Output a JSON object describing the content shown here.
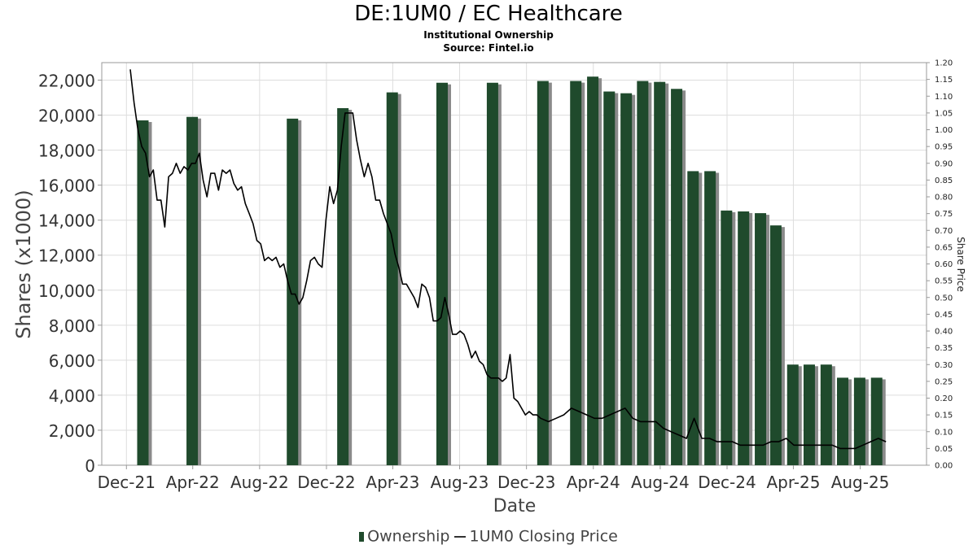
{
  "chart_data": {
    "type": "bar",
    "title": "DE:1UM0 / EC Healthcare",
    "subtitles": [
      "Institutional Ownership",
      "Source: Fintel.io"
    ],
    "xlabel": "Date",
    "ylabel": "Shares (x1000)",
    "y2label": "Share Price",
    "ylim": [
      0,
      23000
    ],
    "y2lim": [
      0,
      1.2
    ],
    "yticks": [
      0,
      2000,
      4000,
      6000,
      8000,
      10000,
      12000,
      14000,
      16000,
      18000,
      20000,
      22000
    ],
    "ytick_labels": [
      "0",
      "2,000",
      "4,000",
      "6,000",
      "8,000",
      "10,000",
      "12,000",
      "14,000",
      "16,000",
      "18,000",
      "20,000",
      "22,000"
    ],
    "y2ticks": [
      0,
      0.05,
      0.1,
      0.15,
      0.2,
      0.25,
      0.3,
      0.35,
      0.4,
      0.45,
      0.5,
      0.55,
      0.6,
      0.65,
      0.7,
      0.75,
      0.8,
      0.85,
      0.9,
      0.95,
      1.0,
      1.05,
      1.1,
      1.15,
      1.2
    ],
    "y2tick_labels": [
      "0.00",
      "0.05",
      "0.10",
      "0.15",
      "0.20",
      "0.25",
      "0.30",
      "0.35",
      "0.40",
      "0.45",
      "0.50",
      "0.55",
      "0.60",
      "0.65",
      "0.70",
      "0.75",
      "0.80",
      "0.85",
      "0.90",
      "0.95",
      "1.00",
      "1.05",
      "1.10",
      "1.15",
      "1.20"
    ],
    "xlim": [
      "2021-10-17",
      "2025-11-30"
    ],
    "xticks": [
      "2021-12-01",
      "2022-04-01",
      "2022-08-01",
      "2022-12-01",
      "2023-04-01",
      "2023-08-01",
      "2023-12-01",
      "2024-04-01",
      "2024-08-01",
      "2024-12-01",
      "2025-04-01",
      "2025-08-01"
    ],
    "xtick_labels": [
      "Dec-21",
      "Apr-22",
      "Aug-22",
      "Dec-22",
      "Apr-23",
      "Aug-23",
      "Dec-23",
      "Apr-24",
      "Aug-24",
      "Dec-24",
      "Apr-25",
      "Aug-25"
    ],
    "grid": true,
    "legend_position": "bottom-center",
    "series": [
      {
        "name": "Ownership",
        "type": "bar",
        "axis": "left",
        "color": "#1f4a2c",
        "x": [
          "2021-12-31",
          "2022-03-31",
          "2022-06-30",
          "2022-09-30",
          "2022-12-31",
          "2023-03-31",
          "2023-06-30",
          "2023-09-30",
          "2023-12-31",
          "2024-02-29",
          "2024-03-31",
          "2024-04-30",
          "2024-05-31",
          "2024-06-30",
          "2024-07-31",
          "2024-08-31",
          "2024-09-30",
          "2024-10-31",
          "2024-11-30",
          "2024-12-31",
          "2025-01-31",
          "2025-02-28",
          "2025-03-31",
          "2025-04-30",
          "2025-05-31",
          "2025-06-30",
          "2025-07-31",
          "2025-08-31",
          "2025-09-30"
        ],
        "values": [
          19700,
          19900,
          0,
          19800,
          20400,
          21300,
          21850,
          21850,
          21950,
          21950,
          22200,
          21350,
          21250,
          21950,
          21900,
          21500,
          16800,
          16800,
          14550,
          14500,
          14400,
          13700,
          5750,
          5750,
          5750,
          5000,
          5000,
          5000,
          0
        ]
      },
      {
        "name": "1UM0 Closing Price",
        "type": "line",
        "axis": "right",
        "color": "#000000",
        "x": [
          "2021-12-08",
          "2021-12-15",
          "2021-12-22",
          "2021-12-29",
          "2022-01-05",
          "2022-01-12",
          "2022-01-19",
          "2022-01-26",
          "2022-02-02",
          "2022-02-09",
          "2022-02-16",
          "2022-02-23",
          "2022-03-02",
          "2022-03-09",
          "2022-03-16",
          "2022-03-23",
          "2022-03-30",
          "2022-04-06",
          "2022-04-13",
          "2022-04-20",
          "2022-04-27",
          "2022-05-04",
          "2022-05-11",
          "2022-05-18",
          "2022-05-25",
          "2022-06-01",
          "2022-06-08",
          "2022-06-15",
          "2022-06-22",
          "2022-06-29",
          "2022-07-06",
          "2022-07-13",
          "2022-07-20",
          "2022-07-27",
          "2022-08-03",
          "2022-08-10",
          "2022-08-17",
          "2022-08-24",
          "2022-08-31",
          "2022-09-07",
          "2022-09-14",
          "2022-09-21",
          "2022-09-28",
          "2022-10-05",
          "2022-10-12",
          "2022-10-19",
          "2022-10-26",
          "2022-11-02",
          "2022-11-09",
          "2022-11-16",
          "2022-11-23",
          "2022-11-30",
          "2022-12-07",
          "2022-12-14",
          "2022-12-21",
          "2022-12-28",
          "2023-01-04",
          "2023-01-11",
          "2023-01-18",
          "2023-01-25",
          "2023-02-01",
          "2023-02-08",
          "2023-02-15",
          "2023-02-22",
          "2023-03-01",
          "2023-03-08",
          "2023-03-15",
          "2023-03-22",
          "2023-03-29",
          "2023-04-05",
          "2023-04-12",
          "2023-04-19",
          "2023-04-26",
          "2023-05-03",
          "2023-05-10",
          "2023-05-17",
          "2023-05-24",
          "2023-05-31",
          "2023-06-07",
          "2023-06-14",
          "2023-06-21",
          "2023-06-28",
          "2023-07-05",
          "2023-07-12",
          "2023-07-19",
          "2023-07-26",
          "2023-08-02",
          "2023-08-09",
          "2023-08-16",
          "2023-08-23",
          "2023-08-30",
          "2023-09-06",
          "2023-09-13",
          "2023-09-20",
          "2023-09-27",
          "2023-10-04",
          "2023-10-11",
          "2023-10-18",
          "2023-10-25",
          "2023-11-01",
          "2023-11-08",
          "2023-11-15",
          "2023-11-22",
          "2023-11-29",
          "2023-12-06",
          "2023-12-13",
          "2023-12-20",
          "2023-12-27",
          "2024-01-10",
          "2024-01-24",
          "2024-02-07",
          "2024-02-21",
          "2024-03-06",
          "2024-03-20",
          "2024-04-03",
          "2024-04-17",
          "2024-05-01",
          "2024-05-15",
          "2024-05-29",
          "2024-06-12",
          "2024-06-26",
          "2024-07-10",
          "2024-07-24",
          "2024-08-07",
          "2024-08-21",
          "2024-09-04",
          "2024-09-18",
          "2024-10-02",
          "2024-10-16",
          "2024-10-30",
          "2024-11-13",
          "2024-11-27",
          "2024-12-11",
          "2024-12-25",
          "2025-01-08",
          "2025-01-22",
          "2025-02-05",
          "2025-02-19",
          "2025-03-05",
          "2025-03-19",
          "2025-04-02",
          "2025-04-16",
          "2025-04-30",
          "2025-05-14",
          "2025-05-28",
          "2025-06-11",
          "2025-06-25",
          "2025-07-09",
          "2025-07-23",
          "2025-08-06",
          "2025-08-20",
          "2025-09-03",
          "2025-09-17"
        ],
        "values": [
          1.18,
          1.08,
          1.0,
          0.95,
          0.93,
          0.86,
          0.88,
          0.79,
          0.79,
          0.71,
          0.86,
          0.87,
          0.9,
          0.87,
          0.89,
          0.88,
          0.9,
          0.9,
          0.93,
          0.85,
          0.8,
          0.87,
          0.87,
          0.82,
          0.88,
          0.87,
          0.88,
          0.84,
          0.82,
          0.83,
          0.78,
          0.75,
          0.72,
          0.67,
          0.66,
          0.61,
          0.62,
          0.61,
          0.62,
          0.59,
          0.6,
          0.55,
          0.51,
          0.51,
          0.48,
          0.5,
          0.55,
          0.61,
          0.62,
          0.6,
          0.59,
          0.73,
          0.83,
          0.78,
          0.82,
          0.95,
          1.05,
          1.05,
          1.05,
          0.97,
          0.91,
          0.86,
          0.9,
          0.86,
          0.79,
          0.79,
          0.75,
          0.72,
          0.69,
          0.63,
          0.59,
          0.54,
          0.54,
          0.52,
          0.5,
          0.47,
          0.54,
          0.53,
          0.5,
          0.43,
          0.43,
          0.44,
          0.5,
          0.45,
          0.39,
          0.39,
          0.4,
          0.39,
          0.36,
          0.32,
          0.34,
          0.31,
          0.3,
          0.27,
          0.26,
          0.26,
          0.26,
          0.25,
          0.26,
          0.33,
          0.2,
          0.19,
          0.17,
          0.15,
          0.16,
          0.15,
          0.15,
          0.14,
          0.13,
          0.14,
          0.15,
          0.17,
          0.16,
          0.15,
          0.14,
          0.14,
          0.15,
          0.16,
          0.17,
          0.14,
          0.13,
          0.13,
          0.13,
          0.11,
          0.1,
          0.09,
          0.08,
          0.14,
          0.08,
          0.08,
          0.07,
          0.07,
          0.07,
          0.06,
          0.06,
          0.06,
          0.06,
          0.07,
          0.07,
          0.08,
          0.06,
          0.06,
          0.06,
          0.06,
          0.06,
          0.06,
          0.05,
          0.05,
          0.05,
          0.06,
          0.07,
          0.08,
          0.07
        ]
      }
    ]
  }
}
